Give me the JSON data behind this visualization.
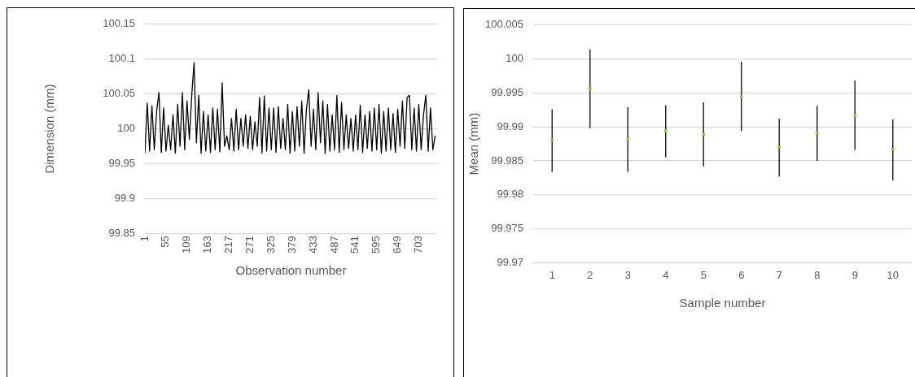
{
  "chart_data": [
    {
      "type": "line",
      "xlabel": "Observation number",
      "ylabel": "Dimension (mm)",
      "color": "#000000",
      "marker": "none",
      "grid": "y",
      "xlim": [
        1,
        750
      ],
      "xticks": [
        1,
        55,
        109,
        163,
        217,
        271,
        325,
        379,
        433,
        487,
        541,
        595,
        649,
        703
      ],
      "ylim": [
        99.85,
        100.15
      ],
      "yticks": [
        99.85,
        99.9,
        99.95,
        100,
        100.05,
        100.1,
        100.15
      ],
      "x": [
        1,
        7,
        13,
        19,
        25,
        31,
        37,
        43,
        49,
        55,
        61,
        67,
        73,
        79,
        85,
        91,
        97,
        103,
        109,
        115,
        121,
        127,
        133,
        139,
        145,
        151,
        157,
        163,
        169,
        175,
        181,
        187,
        193,
        199,
        205,
        211,
        217,
        223,
        229,
        235,
        241,
        247,
        253,
        259,
        265,
        271,
        277,
        283,
        289,
        295,
        301,
        307,
        313,
        319,
        325,
        331,
        337,
        343,
        349,
        355,
        361,
        367,
        373,
        379,
        385,
        391,
        397,
        403,
        409,
        415,
        421,
        427,
        433,
        439,
        445,
        451,
        457,
        463,
        469,
        475,
        481,
        487,
        493,
        499,
        505,
        511,
        517,
        523,
        529,
        535,
        541,
        547,
        553,
        559,
        565,
        571,
        577,
        583,
        589,
        595,
        601,
        607,
        613,
        619,
        625,
        631,
        637,
        643,
        649,
        655,
        661,
        667,
        673,
        679,
        685,
        691,
        697,
        703,
        709,
        715,
        721,
        727,
        733,
        739,
        745
      ],
      "values": [
        99.965,
        100.037,
        99.968,
        100.033,
        99.97,
        100.025,
        100.052,
        99.966,
        100.03,
        99.968,
        100.005,
        99.97,
        100.02,
        99.965,
        100.035,
        99.975,
        100.052,
        99.97,
        100.04,
        99.985,
        100.048,
        100.095,
        99.98,
        100.048,
        99.965,
        100.025,
        99.968,
        100.02,
        99.966,
        100.03,
        99.97,
        100.028,
        99.967,
        100.066,
        99.975,
        99.99,
        99.97,
        100.015,
        99.968,
        100.028,
        99.97,
        100.015,
        99.975,
        100.02,
        99.972,
        100.018,
        99.97,
        100.01,
        99.975,
        100.045,
        99.965,
        100.047,
        99.968,
        100.03,
        99.97,
        100.03,
        99.966,
        100.032,
        99.972,
        100.015,
        99.97,
        100.035,
        99.965,
        100.025,
        99.968,
        100.032,
        99.975,
        100.04,
        99.965,
        100.028,
        100.056,
        99.975,
        100.028,
        99.97,
        100.052,
        99.98,
        100.04,
        99.965,
        100.035,
        99.968,
        100.02,
        99.97,
        100.048,
        99.966,
        100.038,
        99.97,
        100.02,
        99.972,
        100.015,
        99.968,
        100.02,
        99.97,
        100.034,
        99.966,
        100.02,
        99.972,
        100.025,
        99.968,
        100.03,
        99.97,
        100.035,
        99.965,
        100.025,
        99.968,
        100.03,
        99.97,
        100.022,
        99.966,
        100.028,
        99.975,
        100.04,
        99.972,
        100.045,
        100.048,
        99.97,
        100.03,
        99.968,
        100.035,
        99.97,
        100.02,
        100.048,
        99.968,
        100.03,
        99.97,
        99.99
      ]
    },
    {
      "type": "scatter",
      "xlabel": "Sample number",
      "ylabel": "Mean (mm)",
      "color": "#92c050",
      "marker": "square",
      "grid": "y",
      "categories": [
        "1",
        "2",
        "3",
        "4",
        "5",
        "6",
        "7",
        "8",
        "9",
        "10"
      ],
      "ylim": [
        99.97,
        100.005
      ],
      "yticks": [
        99.97,
        99.975,
        99.98,
        99.985,
        99.99,
        99.995,
        100,
        100.005
      ],
      "values": [
        99.9881,
        99.9956,
        99.9882,
        99.9894,
        99.9889,
        99.9945,
        99.987,
        99.9891,
        99.9917,
        99.9867
      ],
      "errors": [
        [
          99.9834,
          99.9926
        ],
        [
          99.9898,
          100.0014
        ],
        [
          99.9834,
          99.9929
        ],
        [
          99.9855,
          99.9932
        ],
        [
          99.9842,
          99.9936
        ],
        [
          99.9894,
          99.9996
        ],
        [
          99.9827,
          99.9912
        ],
        [
          99.985,
          99.9931
        ],
        [
          99.9866,
          99.9968
        ],
        [
          99.9821,
          99.9911
        ]
      ]
    }
  ]
}
